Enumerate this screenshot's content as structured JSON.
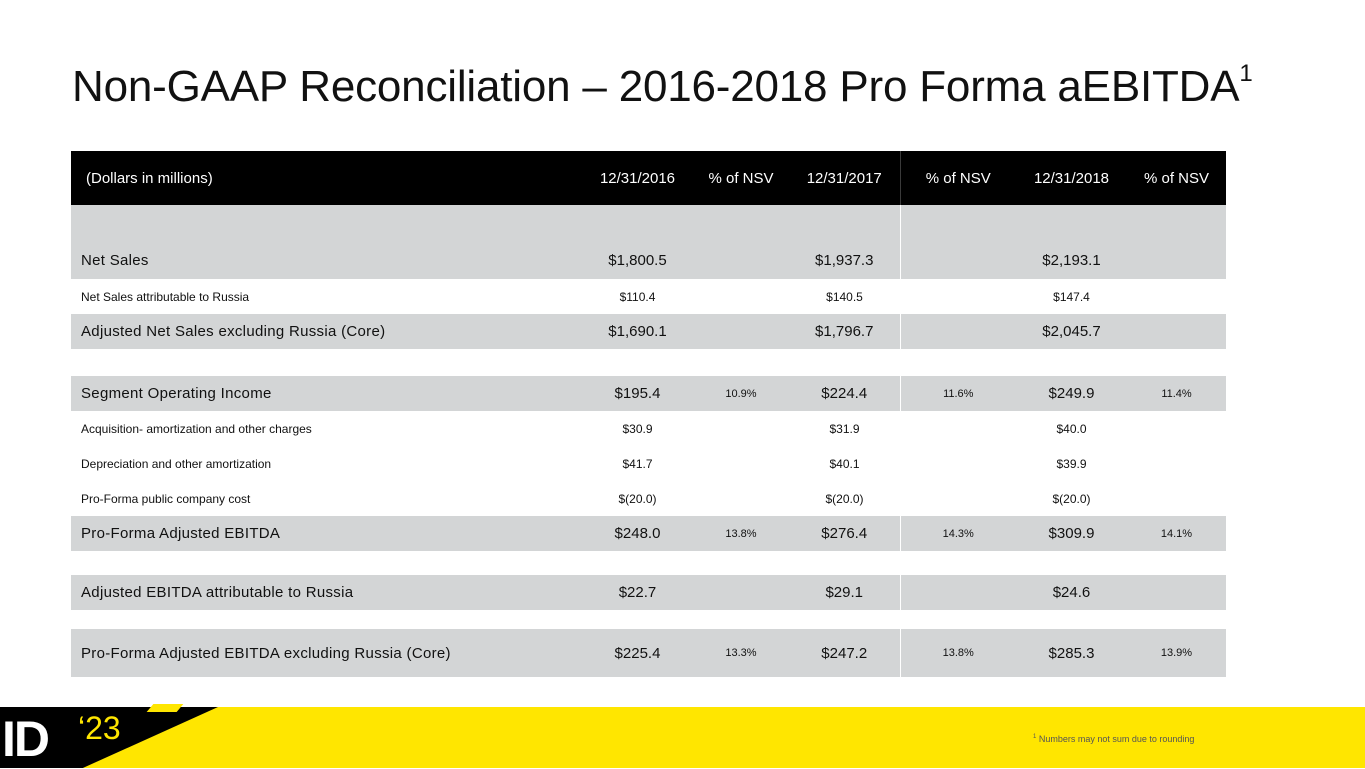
{
  "title": {
    "text": "Non-GAAP Reconciliation – 2016-2018 Pro Forma aEBITDA",
    "superscript": "1"
  },
  "table": {
    "headers": [
      "(Dollars in millions)",
      "12/31/2016",
      "% of NSV",
      "12/31/2017",
      "% of NSV",
      "12/31/2018",
      "% of NSV"
    ],
    "rows": {
      "net_sales": [
        "Net Sales",
        "$1,800.5",
        "",
        "$1,937.3",
        "",
        "$2,193.1",
        ""
      ],
      "net_sales_russia": [
        "Net Sales attributable to Russia",
        "$110.4",
        "",
        "$140.5",
        "",
        "$147.4",
        ""
      ],
      "adj_net_sales_core": [
        "Adjusted Net Sales excluding Russia (Core)",
        "$1,690.1",
        "",
        "$1,796.7",
        "",
        "$2,045.7",
        ""
      ],
      "segment_op_income": [
        "Segment Operating Income",
        "$195.4",
        "10.9%",
        "$224.4",
        "11.6%",
        "$249.9",
        "11.4%"
      ],
      "acquisition": [
        "Acquisition- amortization and other charges",
        "$30.9",
        "",
        "$31.9",
        "",
        "$40.0",
        ""
      ],
      "depreciation": [
        "Depreciation and other amortization",
        "$41.7",
        "",
        "$40.1",
        "",
        "$39.9",
        ""
      ],
      "public_company_cost": [
        "Pro-Forma public company cost",
        "$(20.0)",
        "",
        "$(20.0)",
        "",
        "$(20.0)",
        ""
      ],
      "pf_adj_ebitda": [
        "Pro-Forma Adjusted EBITDA",
        "$248.0",
        "13.8%",
        "$276.4",
        "14.3%",
        "$309.9",
        "14.1%"
      ],
      "adj_ebitda_russia": [
        "Adjusted EBITDA attributable to Russia",
        "$22.7",
        "",
        "$29.1",
        "",
        "$24.6",
        ""
      ],
      "pf_adj_ebitda_core": [
        "Pro-Forma Adjusted EBITDA excluding Russia (Core)",
        "$225.4",
        "13.3%",
        "$247.2",
        "13.8%",
        "$285.3",
        "13.9%"
      ]
    }
  },
  "footer": {
    "logo_text": "ID",
    "logo_year": "‘23",
    "footnote_marker": "1",
    "footnote_text": "Numbers may not sum due to rounding"
  },
  "colors": {
    "header_bg": "#000000",
    "row_grey": "#d3d5d6",
    "brand_yellow": "#ffe600"
  }
}
